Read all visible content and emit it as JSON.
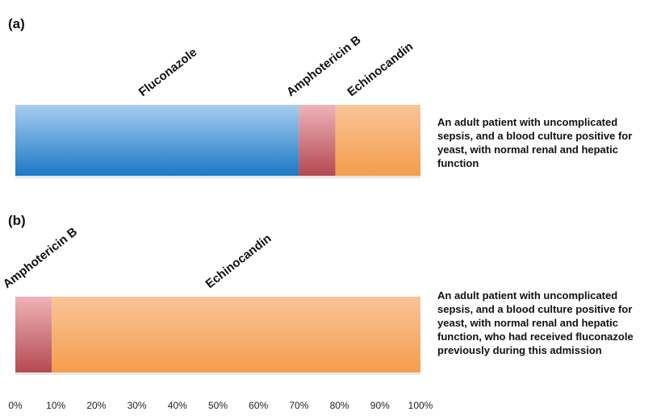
{
  "chart_data": {
    "type": "bar",
    "orientation": "horizontal",
    "stacked": true,
    "xlim": [
      0,
      100
    ],
    "xticks": [
      "0%",
      "10%",
      "20%",
      "30%",
      "40%",
      "50%",
      "60%",
      "70%",
      "80%",
      "90%",
      "100%"
    ],
    "grid": false,
    "panels": [
      {
        "label": "(a)",
        "description": "An adult patient with uncomplicated sepsis, and a blood culture positive for yeast, with normal renal and hepatic function",
        "segments": [
          {
            "name": "Fluconazole",
            "value": 70
          },
          {
            "name": "Amphotericin B",
            "value": 9
          },
          {
            "name": "Echinocandin",
            "value": 21
          }
        ]
      },
      {
        "label": "(b)",
        "description": "An adult patient with uncomplicated sepsis, and a blood culture positive for yeast, with normal renal and hepatic function, who had received fluconazole previously during this admission",
        "segments": [
          {
            "name": "Amphotericin B",
            "value": 9
          },
          {
            "name": "Echinocandin",
            "value": 91
          }
        ]
      }
    ]
  },
  "colors": {
    "Fluconazole": "#2e86cf",
    "Amphotericin B": "#c55a62",
    "Echinocandin": "#f5a55c"
  }
}
